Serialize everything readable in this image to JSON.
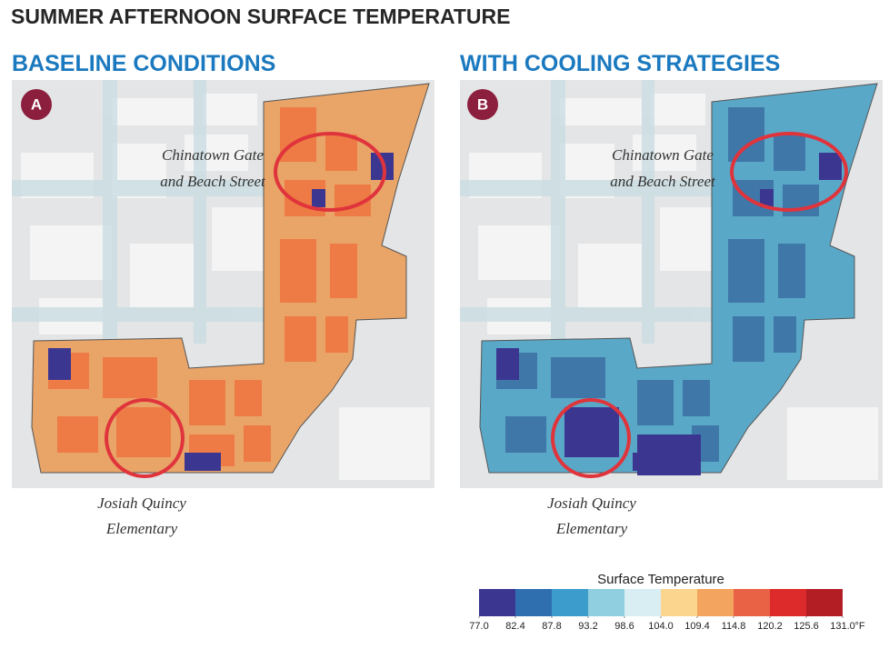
{
  "header": {
    "title": "SUMMER AFTERNOON SURFACE TEMPERATURE"
  },
  "panels": [
    {
      "badge": "A",
      "title": "BASELINE CONDITIONS",
      "annotations": [
        "Chinatown Gate",
        "and Beach Street",
        "Josiah Quincy",
        "Elementary"
      ]
    },
    {
      "badge": "B",
      "title": "WITH COOLING STRATEGIES",
      "annotations": [
        "Chinatown Gate",
        "and Beach Street",
        "Josiah Quincy",
        "Elementary"
      ]
    }
  ],
  "legend": {
    "title": "Surface Temperature",
    "unit": "°F",
    "ticks": [
      {
        "value": 77,
        "label": "77.0"
      },
      {
        "value": 82.4,
        "label": "82.4"
      },
      {
        "value": 87.8,
        "label": "87.8"
      },
      {
        "value": 93.2,
        "label": "93.2"
      },
      {
        "value": 98.6,
        "label": "98.6"
      },
      {
        "value": 104,
        "label": "104.0"
      },
      {
        "value": 109.4,
        "label": "109.4"
      },
      {
        "value": 114.8,
        "label": "114.8"
      },
      {
        "value": 120.2,
        "label": "120.2"
      },
      {
        "value": 125.6,
        "label": "125.6"
      },
      {
        "value": 131,
        "label": "131.0"
      }
    ],
    "colors": [
      "#3b3791",
      "#2f6fb0",
      "#3c9ccb",
      "#8fcfdf",
      "#d8eef2",
      "#fbd58e",
      "#f3a45e",
      "#ea6245",
      "#dd2a2a",
      "#b31e24"
    ]
  }
}
